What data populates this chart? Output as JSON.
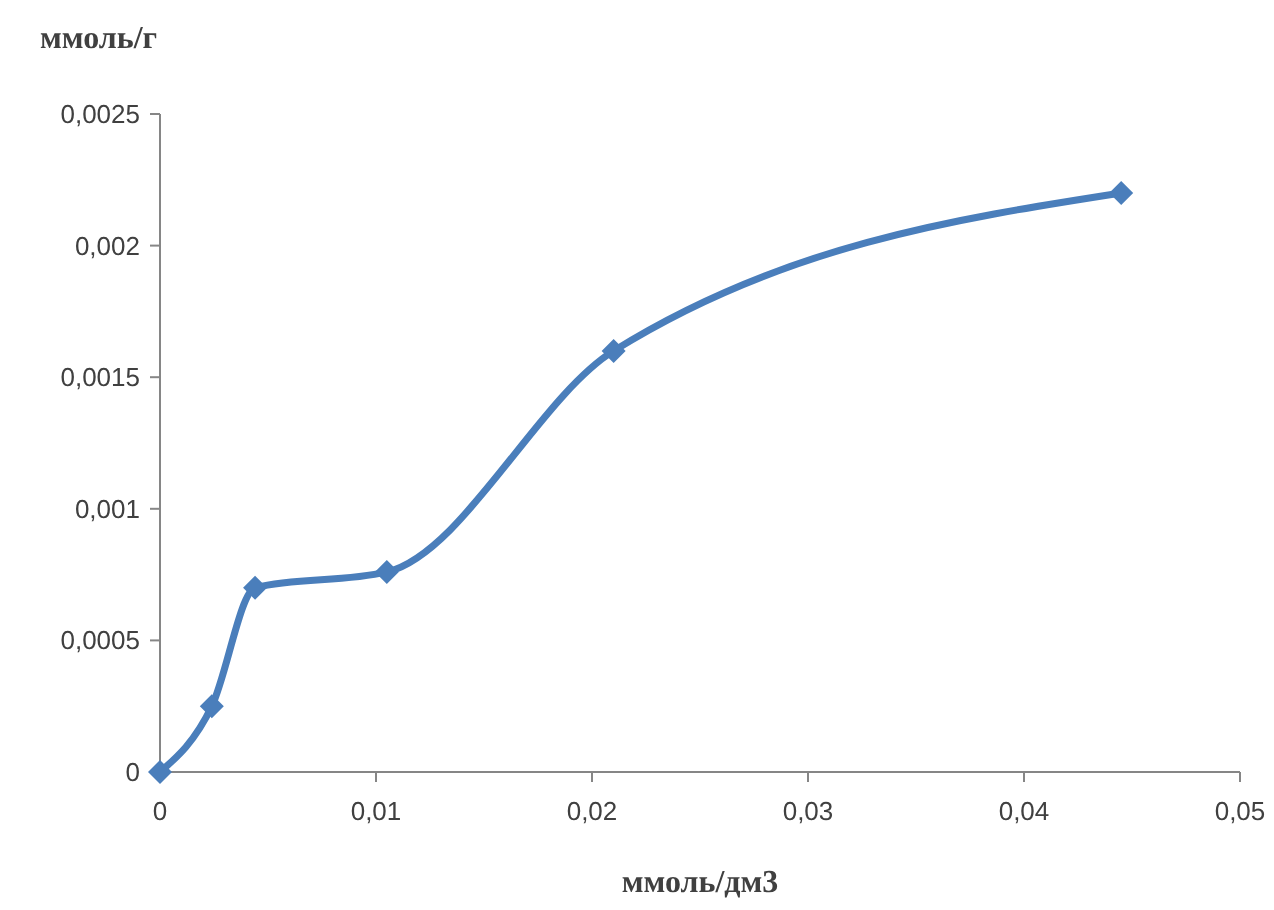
{
  "chart_data": {
    "type": "line",
    "xlabel": "ммоль/дм3",
    "ylabel": "ммоль/г",
    "x": [
      0,
      0.0024,
      0.0044,
      0.0105,
      0.021,
      0.0445
    ],
    "series": [
      {
        "color": "#4a7ebb",
        "values": [
          0,
          0.00025,
          0.0007,
          0.00076,
          0.0016,
          0.0022
        ]
      }
    ],
    "xlim": [
      0,
      0.05
    ],
    "ylim": [
      0,
      0.0025
    ],
    "xticks": [
      {
        "value": 0,
        "label": "0"
      },
      {
        "value": 0.01,
        "label": "0,01"
      },
      {
        "value": 0.02,
        "label": "0,02"
      },
      {
        "value": 0.03,
        "label": "0,03"
      },
      {
        "value": 0.04,
        "label": "0,04"
      },
      {
        "value": 0.05,
        "label": "0,05"
      }
    ],
    "yticks": [
      {
        "value": 0,
        "label": "0"
      },
      {
        "value": 0.0005,
        "label": "0,0005"
      },
      {
        "value": 0.001,
        "label": "0,001"
      },
      {
        "value": 0.0015,
        "label": "0,0015"
      },
      {
        "value": 0.002,
        "label": "0,002"
      },
      {
        "value": 0.0025,
        "label": "0,0025"
      }
    ],
    "grid": false,
    "marker": "diamond",
    "line_style": "solid"
  }
}
